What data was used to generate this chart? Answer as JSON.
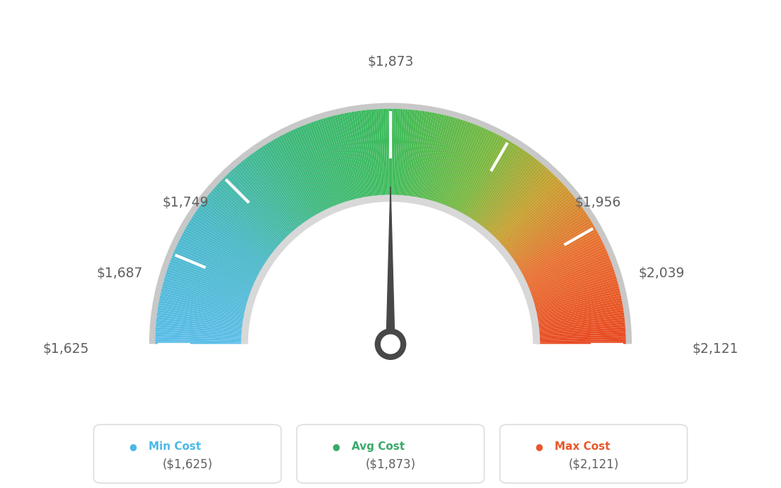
{
  "min_val": 1625,
  "max_val": 2121,
  "avg_val": 1873,
  "tick_labels": [
    "$1,625",
    "$1,687",
    "$1,749",
    "$1,873",
    "$1,956",
    "$2,039",
    "$2,121"
  ],
  "tick_values": [
    1625,
    1687,
    1749,
    1873,
    1956,
    2039,
    2121
  ],
  "legend_labels": [
    "Min Cost",
    "Avg Cost",
    "Max Cost"
  ],
  "legend_values": [
    "($1,625)",
    "($1,873)",
    "($2,121)"
  ],
  "legend_colors": [
    "#4db8e8",
    "#3aaa6a",
    "#e8582a"
  ],
  "bg_color": "#ffffff",
  "needle_color": "#484848",
  "outer_border_color": "#c8c8c8",
  "inner_arc_color": "#d8d8d8",
  "label_color": "#606060",
  "gauge_gradient": [
    [
      0.0,
      "#5bbde8"
    ],
    [
      0.18,
      "#4ab8c8"
    ],
    [
      0.35,
      "#3db87a"
    ],
    [
      0.5,
      "#3dbb5a"
    ],
    [
      0.65,
      "#7ab840"
    ],
    [
      0.75,
      "#c8a030"
    ],
    [
      0.85,
      "#e87030"
    ],
    [
      1.0,
      "#e84820"
    ]
  ]
}
